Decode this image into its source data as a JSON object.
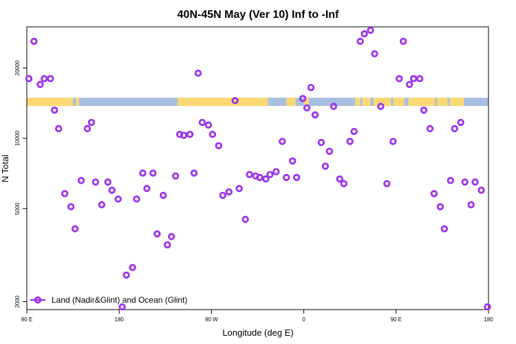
{
  "chart_data": {
    "type": "scatter",
    "title": "40N-45N May (Ver 10)   Inf to -Inf",
    "xlabel": "Longitude (deg E)",
    "ylabel": "N Total",
    "x_ticks": [
      {
        "value": 0,
        "label": "90 E"
      },
      {
        "value": 90,
        "label": "180"
      },
      {
        "value": 180,
        "label": "90 W"
      },
      {
        "value": 270,
        "label": "0"
      },
      {
        "value": 360,
        "label": "90 E"
      },
      {
        "value": 450,
        "label": "180"
      }
    ],
    "xlim": [
      0,
      450
    ],
    "y_scale": "log",
    "ylim": [
      1850,
      30000
    ],
    "y_ticks": [
      {
        "value": 2000,
        "label": "2000"
      },
      {
        "value": 5000,
        "label": "5000"
      },
      {
        "value": 10000,
        "label": "10000"
      },
      {
        "value": 20000,
        "label": "20000"
      }
    ],
    "legend": {
      "position": "bottom-left",
      "entries": [
        "Land (Nadir&Glint) and Ocean (Glint)"
      ]
    },
    "series": [
      {
        "name": "Land (Nadir&Glint) and Ocean (Glint)",
        "color": "#9b30f0",
        "x": [
          2,
          7,
          13,
          17,
          23,
          27,
          31,
          37,
          43,
          47,
          53,
          59,
          63,
          67,
          73,
          79,
          83,
          89,
          93,
          97,
          103,
          107,
          113,
          117,
          123,
          127,
          133,
          137,
          141,
          145,
          149,
          153,
          159,
          163,
          167,
          171,
          177,
          181,
          187,
          191,
          197,
          203,
          207,
          213,
          217,
          223,
          227,
          233,
          237,
          243,
          249,
          253,
          259,
          263,
          269,
          273,
          277,
          281,
          287,
          291,
          295,
          299,
          305,
          309,
          315,
          319,
          325,
          329,
          335,
          339,
          345,
          351,
          357,
          363,
          367,
          373,
          377,
          383,
          387,
          393,
          397,
          403,
          407,
          413,
          417,
          423,
          427,
          433,
          437,
          443,
          449
        ],
        "y": [
          18000,
          26000,
          17000,
          18000,
          18000,
          13200,
          11000,
          5800,
          5100,
          4100,
          6600,
          11000,
          11700,
          6500,
          5200,
          6500,
          6000,
          5500,
          1900,
          2600,
          2800,
          5500,
          7100,
          6100,
          7100,
          3900,
          5700,
          3500,
          3800,
          6900,
          10400,
          10300,
          10400,
          7100,
          19000,
          11700,
          11400,
          10400,
          9300,
          5700,
          5900,
          14500,
          6100,
          4500,
          7000,
          6900,
          6800,
          6700,
          7000,
          7200,
          9700,
          6800,
          8000,
          6800,
          14800,
          13500,
          16500,
          12600,
          9600,
          7600,
          8800,
          13700,
          6700,
          6400,
          9700,
          10700,
          26000,
          28000,
          29000,
          23000,
          13700,
          6400,
          9700,
          18000,
          26000,
          17000,
          18000,
          18000,
          13200,
          11000,
          5800,
          5100,
          4100,
          6600,
          11000,
          11700,
          6500,
          5200,
          6500,
          6000,
          1900
        ]
      }
    ]
  }
}
